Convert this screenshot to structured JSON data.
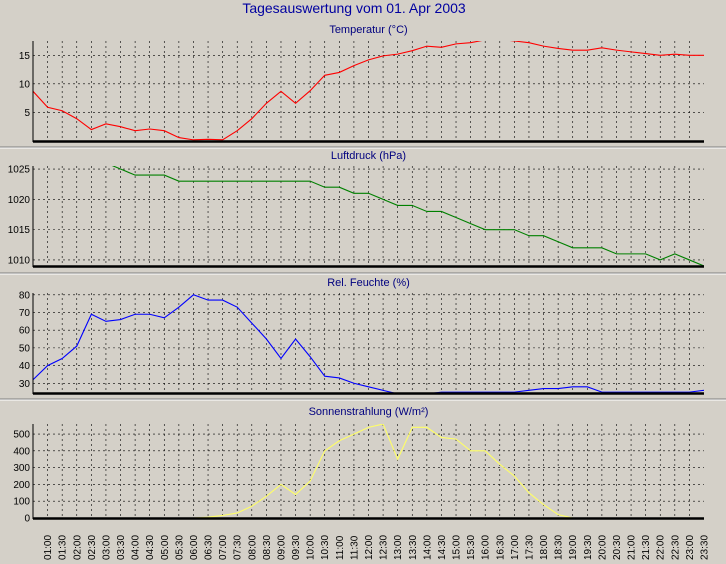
{
  "title": "Tagesauswertung vom 01. Apr 2003",
  "chart_data": [
    {
      "type": "line",
      "title": "Temperatur (°C)",
      "color": "#ff0000",
      "ylim": [
        0,
        17.5
      ],
      "yticks": [
        5,
        10,
        15
      ],
      "grid": true,
      "x": [
        "00:30",
        "01:00",
        "01:30",
        "02:00",
        "02:30",
        "03:00",
        "03:30",
        "04:00",
        "04:30",
        "05:00",
        "05:30",
        "06:00",
        "06:30",
        "07:00",
        "07:30",
        "08:00",
        "08:30",
        "09:00",
        "09:30",
        "10:00",
        "10:30",
        "11:00",
        "11:30",
        "12:00",
        "12:30",
        "13:00",
        "13:30",
        "14:00",
        "14:30",
        "15:00",
        "15:30",
        "16:00",
        "16:30",
        "17:00",
        "17:30",
        "18:00",
        "18:30",
        "19:00",
        "19:30",
        "20:00",
        "20:30",
        "21:00",
        "21:30",
        "22:00",
        "22:30",
        "23:00",
        "23:30"
      ],
      "values": [
        8.7,
        5.9,
        5.3,
        3.9,
        2.0,
        3.0,
        2.5,
        1.8,
        2.1,
        1.8,
        0.6,
        0.2,
        0.3,
        0.2,
        1.8,
        3.9,
        6.6,
        8.7,
        6.6,
        8.8,
        11.5,
        12.0,
        13.2,
        14.2,
        14.9,
        15.2,
        15.8,
        16.6,
        16.4,
        17.0,
        17.2,
        17.7,
        17.8,
        17.5,
        17.2,
        16.6,
        16.2,
        15.9,
        15.9,
        16.3,
        15.9,
        15.6,
        15.3,
        15.0,
        15.2,
        15.0,
        15.0
      ]
    },
    {
      "type": "line",
      "title": "Luftdruck (hPa)",
      "color": "#008000",
      "ylim": [
        1009,
        1025.5
      ],
      "yticks": [
        1010,
        1015,
        1020,
        1025
      ],
      "grid": true,
      "x": [
        "00:30",
        "01:00",
        "01:30",
        "02:00",
        "02:30",
        "03:00",
        "03:30",
        "04:00",
        "04:30",
        "05:00",
        "05:30",
        "06:00",
        "06:30",
        "07:00",
        "07:30",
        "08:00",
        "08:30",
        "09:00",
        "09:30",
        "10:00",
        "10:30",
        "11:00",
        "11:30",
        "12:00",
        "12:30",
        "13:00",
        "13:30",
        "14:00",
        "14:30",
        "15:00",
        "15:30",
        "16:00",
        "16:30",
        "17:00",
        "17:30",
        "18:00",
        "18:30",
        "19:00",
        "19:30",
        "20:00",
        "20:30",
        "21:00",
        "21:30",
        "22:00",
        "22:30",
        "23:00",
        "23:30"
      ],
      "values": [
        1027,
        1027,
        1027,
        1026,
        1026,
        1026,
        1025,
        1024,
        1024,
        1024,
        1023,
        1023,
        1023,
        1023,
        1023,
        1023,
        1023,
        1023,
        1023,
        1023,
        1022,
        1022,
        1021,
        1021,
        1020,
        1019,
        1019,
        1018,
        1018,
        1017,
        1016,
        1015,
        1015,
        1015,
        1014,
        1014,
        1013,
        1012,
        1012,
        1012,
        1011,
        1011,
        1011,
        1010,
        1011,
        1010,
        1009
      ]
    },
    {
      "type": "line",
      "title": "Rel. Feuchte (%)",
      "color": "#0000ff",
      "ylim": [
        24.5,
        81
      ],
      "yticks": [
        30,
        40,
        50,
        60,
        70,
        80
      ],
      "grid": true,
      "x": [
        "00:30",
        "01:00",
        "01:30",
        "02:00",
        "02:30",
        "03:00",
        "03:30",
        "04:00",
        "04:30",
        "05:00",
        "05:30",
        "06:00",
        "06:30",
        "07:00",
        "07:30",
        "08:00",
        "08:30",
        "09:00",
        "09:30",
        "10:00",
        "10:30",
        "11:00",
        "11:30",
        "12:00",
        "12:30",
        "13:00",
        "13:30",
        "14:00",
        "14:30",
        "15:00",
        "15:30",
        "16:00",
        "16:30",
        "17:00",
        "17:30",
        "18:00",
        "18:30",
        "19:00",
        "19:30",
        "20:00",
        "20:30",
        "21:00",
        "21:30",
        "22:00",
        "22:30",
        "23:00",
        "23:30"
      ],
      "values": [
        32,
        40,
        44,
        51,
        69,
        65,
        66,
        69,
        69,
        67,
        73,
        80,
        77,
        77,
        73,
        64,
        55,
        44,
        55,
        45,
        34,
        33,
        30,
        28,
        26,
        24,
        24,
        24,
        25,
        25,
        25,
        25,
        25,
        25,
        26,
        27,
        27,
        28,
        28,
        25,
        25,
        25,
        25,
        25,
        25,
        25,
        26
      ]
    },
    {
      "type": "line",
      "title": "Sonnenstrahlung (W/m²)",
      "color": "#ffff66",
      "ylim": [
        0,
        560
      ],
      "yticks": [
        0,
        100,
        200,
        300,
        400,
        500
      ],
      "grid": true,
      "x": [
        "00:30",
        "01:00",
        "01:30",
        "02:00",
        "02:30",
        "03:00",
        "03:30",
        "04:00",
        "04:30",
        "05:00",
        "05:30",
        "06:00",
        "06:30",
        "07:00",
        "07:30",
        "08:00",
        "08:30",
        "09:00",
        "09:30",
        "10:00",
        "10:30",
        "11:00",
        "11:30",
        "12:00",
        "12:30",
        "13:00",
        "13:30",
        "14:00",
        "14:30",
        "15:00",
        "15:30",
        "16:00",
        "16:30",
        "17:00",
        "17:30",
        "18:00",
        "18:30",
        "19:00",
        "19:30",
        "20:00",
        "20:30",
        "21:00",
        "21:30",
        "22:00",
        "22:30",
        "23:00",
        "23:30"
      ],
      "values": [
        0,
        0,
        0,
        0,
        0,
        0,
        0,
        0,
        0,
        0,
        0,
        0,
        5,
        15,
        30,
        70,
        130,
        200,
        140,
        220,
        400,
        460,
        500,
        540,
        560,
        350,
        540,
        540,
        480,
        470,
        400,
        400,
        320,
        250,
        150,
        80,
        20,
        0,
        0,
        0,
        0,
        0,
        0,
        0,
        0,
        0,
        0
      ]
    }
  ],
  "x_tick_labels": [
    "01:00",
    "01:30",
    "02:00",
    "02:30",
    "03:00",
    "03:30",
    "04:00",
    "04:30",
    "05:00",
    "05:30",
    "06:00",
    "06:30",
    "07:00",
    "07:30",
    "08:00",
    "08:30",
    "09:00",
    "09:30",
    "10:00",
    "10:30",
    "11:00",
    "11:30",
    "12:00",
    "12:30",
    "13:00",
    "13:30",
    "14:00",
    "14:30",
    "15:00",
    "15:30",
    "16:00",
    "16:30",
    "17:00",
    "17:30",
    "18:00",
    "18:30",
    "19:00",
    "19:30",
    "20:00",
    "20:30",
    "21:00",
    "21:30",
    "22:00",
    "22:30",
    "23:00",
    "23:30"
  ]
}
